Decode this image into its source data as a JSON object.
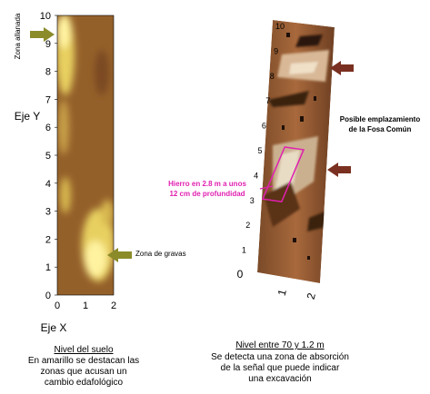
{
  "left_panel": {
    "yticks": [
      0,
      1,
      2,
      3,
      4,
      5,
      6,
      7,
      8,
      9,
      10
    ],
    "xticks": [
      0,
      1,
      2
    ],
    "y_label": "Eje Y",
    "x_label": "Eje X",
    "zone_top": "Zona allanada",
    "zone_bottom": "Zona de gravas",
    "caption_title": "Nivel del suelo",
    "caption_lines": [
      "En amarillo se destacan las",
      "zonas que acusan un",
      "cambio edafológico"
    ]
  },
  "right_panel": {
    "yticks": [
      0,
      1,
      2,
      3,
      4,
      5,
      6,
      7,
      8,
      9,
      10
    ],
    "xticks": [
      1,
      2
    ],
    "annotation_right": [
      "Posible emplazamiento",
      "de la Fosa Común"
    ],
    "annotation_iron": [
      "Hierro en 2.8 m a unos",
      "12 cm de profundidad"
    ],
    "caption_title": "Nivel entre 70 y 1.2 m",
    "caption_lines": [
      "Se detecta una zona de absorción",
      "de la señal que puede indicar",
      "una  excavación"
    ]
  }
}
